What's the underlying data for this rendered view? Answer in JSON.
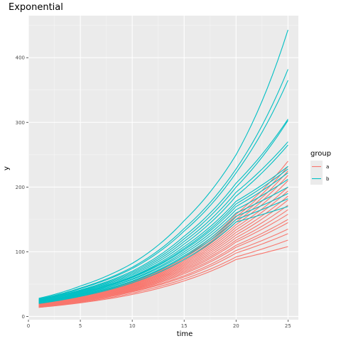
{
  "chart_data": {
    "type": "line",
    "title": "Exponential",
    "xlabel": "time",
    "ylabel": "y",
    "xlim": [
      0,
      26
    ],
    "ylim": [
      -5,
      465
    ],
    "x_ticks": [
      0,
      5,
      10,
      15,
      20,
      25
    ],
    "y_ticks": [
      0,
      100,
      200,
      300,
      400
    ],
    "grid": true,
    "x": [
      1,
      5,
      10,
      15,
      20,
      25
    ],
    "legend": {
      "title": "group",
      "placement": "right",
      "entries": [
        {
          "label": "a",
          "color": "#F8766D"
        },
        {
          "label": "b",
          "color": "#00BFC4"
        }
      ]
    },
    "groups": {
      "a": {
        "color": "#F8766D",
        "series": [
          {
            "values": [
              14,
              21,
              34,
              55,
              88,
              108
            ]
          },
          {
            "values": [
              14,
              22,
              36,
              58,
              92,
              118
            ]
          },
          {
            "values": [
              15,
              23,
              38,
              61,
              98,
              128
            ]
          },
          {
            "values": [
              15,
              23,
              39,
              63,
              102,
              135
            ]
          },
          {
            "values": [
              15,
              24,
              40,
              66,
              107,
              145
            ]
          },
          {
            "values": [
              16,
              25,
              41,
              68,
              110,
              150
            ]
          },
          {
            "values": [
              16,
              25,
              42,
              70,
              115,
              158
            ]
          },
          {
            "values": [
              16,
              26,
              43,
              72,
              118,
              165
            ]
          },
          {
            "values": [
              17,
              26,
              44,
              74,
              122,
              172
            ]
          },
          {
            "values": [
              17,
              27,
              45,
              76,
              126,
              180
            ]
          },
          {
            "values": [
              17,
              27,
              46,
              78,
              130,
              186
            ]
          },
          {
            "values": [
              18,
              28,
              47,
              80,
              134,
              194
            ]
          },
          {
            "values": [
              18,
              28,
              48,
              82,
              138,
              200
            ]
          },
          {
            "values": [
              18,
              29,
              49,
              84,
              142,
              210
            ]
          },
          {
            "values": [
              19,
              30,
              50,
              86,
              146,
              218
            ]
          },
          {
            "values": [
              19,
              30,
              51,
              88,
              150,
              225
            ]
          },
          {
            "values": [
              20,
              31,
              52,
              90,
              154,
              232
            ]
          },
          {
            "values": [
              20,
              31,
              53,
              92,
              158,
              240
            ]
          }
        ]
      },
      "b": {
        "color": "#00BFC4",
        "series": [
          {
            "values": [
              20,
              31,
              52,
              88,
              146,
              170
            ]
          },
          {
            "values": [
              21,
              32,
              54,
              92,
              150,
              182
            ]
          },
          {
            "values": [
              21,
              33,
              55,
              94,
              155,
              190
            ]
          },
          {
            "values": [
              22,
              34,
              57,
              97,
              160,
              200
            ]
          },
          {
            "values": [
              22,
              34,
              58,
              100,
              165,
              212
            ]
          },
          {
            "values": [
              23,
              35,
              60,
              103,
              170,
              222
            ]
          },
          {
            "values": [
              23,
              36,
              61,
              105,
              174,
              228
            ]
          },
          {
            "values": [
              24,
              37,
              62,
              108,
              178,
              232
            ]
          },
          {
            "values": [
              24,
              38,
              64,
              112,
              186,
              265
            ]
          },
          {
            "values": [
              25,
              39,
              66,
              116,
              192,
              270
            ]
          },
          {
            "values": [
              25,
              40,
              68,
              120,
              200,
              303
            ]
          },
          {
            "values": [
              26,
              41,
              70,
              124,
              206,
              305
            ]
          },
          {
            "values": [
              26,
              43,
              74,
              132,
              222,
              365
            ]
          },
          {
            "values": [
              27,
              44,
              76,
              136,
              228,
              382
            ]
          },
          {
            "values": [
              28,
              47,
              82,
              148,
              250,
              443
            ]
          }
        ]
      }
    }
  }
}
